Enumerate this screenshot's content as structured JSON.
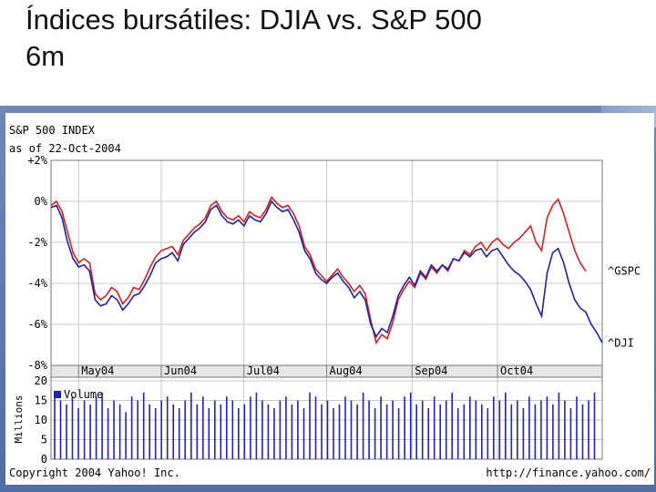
{
  "slide": {
    "title_line1": "Índices bursátiles: DJIA vs. S&P 500",
    "title_line2": "6m"
  },
  "chart_header": {
    "index_name": "S&P 500 INDEX",
    "as_of": "as of 22-Oct-2004"
  },
  "footer": {
    "copyright": "Copyright 2004 Yahoo! Inc.",
    "url": "http://finance.yahoo.com/"
  },
  "colors": {
    "gspc": "#cc2222",
    "dji": "#22229a",
    "volume": "#2222bb",
    "grid": "#c8c8c8",
    "axis_bar": "#e6e6e6"
  },
  "chart_data": [
    {
      "type": "line",
      "ylim": [
        -8,
        2
      ],
      "y_ticks": [
        2,
        0,
        -2,
        -4,
        -6,
        -8
      ],
      "y_tick_labels": [
        "+2%",
        "0%",
        "-2%",
        "-4%",
        "-6%",
        "-8%"
      ],
      "x_tick_labels": [
        "May04",
        "Jun04",
        "Jul04",
        "Aug04",
        "Sep04",
        "Oct04"
      ],
      "x_tick_positions": [
        0.05,
        0.2,
        0.35,
        0.5,
        0.655,
        0.81
      ],
      "grid": true,
      "legend": "right",
      "series": [
        {
          "name": "^GSPC",
          "x": [
            0,
            0.01,
            0.02,
            0.03,
            0.04,
            0.05,
            0.06,
            0.07,
            0.08,
            0.09,
            0.1,
            0.11,
            0.12,
            0.13,
            0.14,
            0.15,
            0.16,
            0.17,
            0.18,
            0.19,
            0.2,
            0.21,
            0.22,
            0.23,
            0.24,
            0.25,
            0.26,
            0.27,
            0.28,
            0.29,
            0.3,
            0.31,
            0.32,
            0.33,
            0.34,
            0.35,
            0.36,
            0.37,
            0.38,
            0.39,
            0.4,
            0.41,
            0.42,
            0.43,
            0.44,
            0.45,
            0.46,
            0.47,
            0.48,
            0.49,
            0.5,
            0.51,
            0.52,
            0.53,
            0.54,
            0.55,
            0.56,
            0.57,
            0.58,
            0.59,
            0.6,
            0.61,
            0.62,
            0.63,
            0.64,
            0.65,
            0.66,
            0.67,
            0.68,
            0.69,
            0.7,
            0.71,
            0.72,
            0.73,
            0.74,
            0.75,
            0.76,
            0.77,
            0.78,
            0.79,
            0.8,
            0.81,
            0.82,
            0.83,
            0.84,
            0.85,
            0.86,
            0.87,
            0.88,
            0.89,
            0.9,
            0.91,
            0.92,
            0.93,
            0.94,
            0.95,
            0.96,
            0.97
          ],
          "values": [
            -0.2,
            0,
            -0.5,
            -1.5,
            -2.5,
            -3,
            -2.8,
            -3,
            -4.5,
            -4.8,
            -4.6,
            -4.2,
            -4.4,
            -5,
            -4.7,
            -4.2,
            -4.3,
            -3.8,
            -3.2,
            -2.7,
            -2.4,
            -2.3,
            -2.2,
            -2.6,
            -1.9,
            -1.6,
            -1.3,
            -1.1,
            -0.8,
            -0.2,
            0,
            -0.5,
            -0.8,
            -0.9,
            -0.7,
            -1,
            -0.5,
            -0.7,
            -0.8,
            -0.4,
            0.2,
            -0.1,
            -0.3,
            -0.2,
            -0.6,
            -1.2,
            -2.2,
            -2.6,
            -3.3,
            -3.6,
            -3.9,
            -3.6,
            -3.3,
            -3.7,
            -4,
            -4.4,
            -4.1,
            -4.5,
            -5.8,
            -6.9,
            -6.5,
            -6.7,
            -5.9,
            -4.8,
            -4.3,
            -3.9,
            -4.2,
            -3.5,
            -3.8,
            -3.2,
            -3.5,
            -3.1,
            -3.4,
            -2.8,
            -2.9,
            -2.4,
            -2.6,
            -2.2,
            -2.0,
            -2.4,
            -2.0,
            -1.8,
            -2.1,
            -2.3,
            -2.0,
            -1.8,
            -1.5,
            -1.2,
            -2.0,
            -2.4,
            -0.8,
            -0.2,
            0.1,
            -0.6,
            -1.5,
            -2.4,
            -3.0,
            -3.4
          ]
        },
        {
          "name": "^DJI",
          "x": [
            0,
            0.01,
            0.02,
            0.03,
            0.04,
            0.05,
            0.06,
            0.07,
            0.08,
            0.09,
            0.1,
            0.11,
            0.12,
            0.13,
            0.14,
            0.15,
            0.16,
            0.17,
            0.18,
            0.19,
            0.2,
            0.21,
            0.22,
            0.23,
            0.24,
            0.25,
            0.26,
            0.27,
            0.28,
            0.29,
            0.3,
            0.31,
            0.32,
            0.33,
            0.34,
            0.35,
            0.36,
            0.37,
            0.38,
            0.39,
            0.4,
            0.41,
            0.42,
            0.43,
            0.44,
            0.45,
            0.46,
            0.47,
            0.48,
            0.49,
            0.5,
            0.51,
            0.52,
            0.53,
            0.54,
            0.55,
            0.56,
            0.57,
            0.58,
            0.59,
            0.6,
            0.61,
            0.62,
            0.63,
            0.64,
            0.65,
            0.66,
            0.67,
            0.68,
            0.69,
            0.7,
            0.71,
            0.72,
            0.73,
            0.74,
            0.75,
            0.76,
            0.77,
            0.78,
            0.79,
            0.8,
            0.81,
            0.82,
            0.83,
            0.84,
            0.85,
            0.86,
            0.87,
            0.88,
            0.89,
            0.9,
            0.91,
            0.92,
            0.93,
            0.94,
            0.95,
            0.96,
            0.97,
            0.98,
            0.99,
            1.0
          ],
          "values": [
            -0.3,
            -0.2,
            -0.8,
            -2,
            -2.8,
            -3.2,
            -3.1,
            -3.4,
            -4.8,
            -5.1,
            -5,
            -4.6,
            -4.8,
            -5.3,
            -5,
            -4.6,
            -4.5,
            -4.1,
            -3.6,
            -3,
            -2.8,
            -2.7,
            -2.5,
            -2.9,
            -2.1,
            -1.8,
            -1.5,
            -1.3,
            -1,
            -0.4,
            -0.2,
            -0.7,
            -1,
            -1.1,
            -0.9,
            -1.2,
            -0.7,
            -0.9,
            -1,
            -0.6,
            0,
            -0.3,
            -0.5,
            -0.4,
            -0.9,
            -1.5,
            -2.4,
            -2.8,
            -3.5,
            -3.8,
            -4,
            -3.7,
            -3.5,
            -3.9,
            -4.2,
            -4.7,
            -4.4,
            -4.8,
            -6,
            -6.6,
            -6.2,
            -6.4,
            -5.6,
            -4.6,
            -4.1,
            -3.7,
            -4.1,
            -3.4,
            -3.7,
            -3.1,
            -3.4,
            -3.1,
            -3.3,
            -2.8,
            -2.9,
            -2.5,
            -2.7,
            -2.4,
            -2.3,
            -2.7,
            -2.4,
            -2.3,
            -2.7,
            -3.1,
            -3.4,
            -3.6,
            -3.9,
            -4.3,
            -5.0,
            -5.6,
            -3.5,
            -2.5,
            -2.3,
            -3.0,
            -4.0,
            -4.8,
            -5.2,
            -5.4,
            -6.0,
            -6.4,
            -6.9
          ]
        }
      ]
    },
    {
      "type": "bar",
      "ylabel": "Millions",
      "ylim": [
        0,
        20
      ],
      "y_ticks": [
        20,
        15,
        10,
        5,
        0
      ],
      "series": [
        {
          "name": "Volume",
          "values": [
            17,
            15,
            14,
            16,
            13,
            15,
            14,
            16,
            17,
            13,
            15,
            14,
            12,
            16,
            15,
            17,
            14,
            13,
            15,
            16,
            14,
            13,
            15,
            17,
            14,
            16,
            13,
            15,
            14,
            16,
            15,
            13,
            14,
            16,
            17,
            15,
            14,
            13,
            15,
            16,
            14,
            15,
            13,
            17,
            16,
            14,
            15,
            13,
            14,
            16,
            15,
            14,
            17,
            15,
            13,
            16,
            14,
            15,
            13,
            16,
            17,
            14,
            15,
            13,
            16,
            14,
            15,
            17,
            13,
            14,
            16,
            15,
            14,
            13,
            16,
            15,
            17,
            14,
            15,
            13,
            16,
            14,
            15,
            16,
            14,
            17,
            15,
            13,
            16,
            14,
            15,
            17
          ]
        }
      ]
    }
  ]
}
